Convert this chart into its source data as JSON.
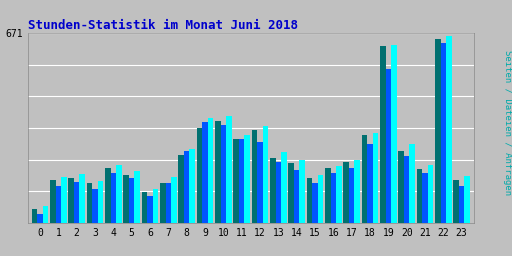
{
  "title": "Stunden-Statistik im Monat Juni 2018",
  "title_color": "#0000CC",
  "ylabel": "Seiten / Dateien / Anfragen",
  "ylabel_color": "#00AAAA",
  "background_color": "#C0C0C0",
  "plot_bg_color": "#C0C0C0",
  "max_label": "671",
  "hours": [
    0,
    1,
    2,
    3,
    4,
    5,
    6,
    7,
    8,
    9,
    10,
    11,
    12,
    13,
    14,
    15,
    16,
    17,
    18,
    19,
    20,
    21,
    22,
    23
  ],
  "seiten": [
    50,
    150,
    160,
    140,
    195,
    170,
    108,
    140,
    240,
    335,
    360,
    295,
    330,
    230,
    210,
    160,
    195,
    215,
    310,
    625,
    255,
    190,
    650,
    150
  ],
  "dateien": [
    32,
    130,
    145,
    120,
    175,
    158,
    95,
    140,
    255,
    355,
    345,
    295,
    285,
    215,
    185,
    140,
    175,
    195,
    280,
    545,
    235,
    175,
    638,
    130
  ],
  "anfragen": [
    60,
    162,
    172,
    148,
    205,
    182,
    118,
    162,
    262,
    372,
    378,
    312,
    342,
    250,
    222,
    170,
    202,
    222,
    318,
    628,
    280,
    205,
    662,
    165
  ],
  "bar_width": 0.3,
  "colors": {
    "seiten": "#007070",
    "dateien": "#0055FF",
    "anfragen": "#00FFFF"
  },
  "ylim": [
    0,
    671
  ],
  "ytick_val": 671,
  "num_gridlines": 6,
  "font_family": "monospace"
}
